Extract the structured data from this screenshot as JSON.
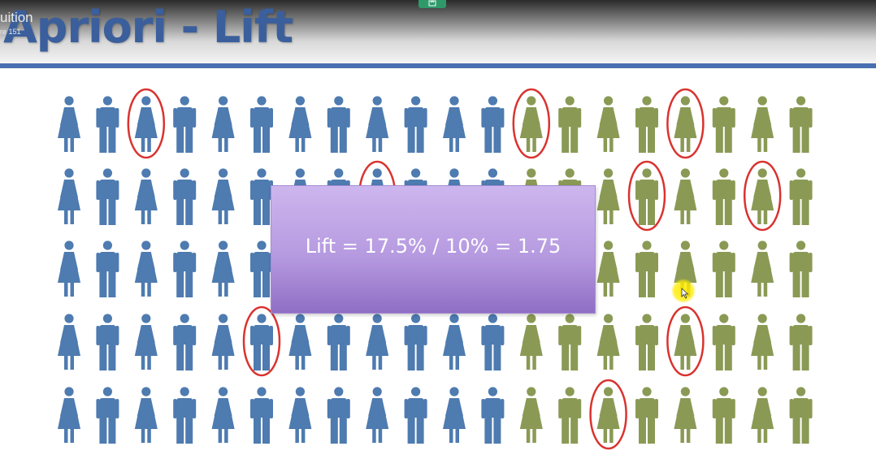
{
  "slide": {
    "title": "Apriori - Lift",
    "callout": "Lift = 17.5% / 10% = 1.75"
  },
  "overlay": {
    "title": "uition",
    "subtitle": "re 151"
  },
  "colors": {
    "blue_person": "#4e7bb0",
    "green_person": "#8a9a55",
    "circle": "#d9332f",
    "header_rule": "#4a6fb0"
  },
  "grid": {
    "rows": 5,
    "columns": 20,
    "pattern": [
      "female",
      "male"
    ],
    "blue_column_counts": [
      12,
      12,
      12,
      12,
      12
    ],
    "circled": [
      [
        0,
        2
      ],
      [
        0,
        12
      ],
      [
        0,
        16
      ],
      [
        1,
        8
      ],
      [
        1,
        15
      ],
      [
        1,
        18
      ],
      [
        3,
        5
      ],
      [
        3,
        16
      ],
      [
        4,
        14
      ]
    ]
  },
  "icons": {
    "top_button": "screen-share-icon",
    "cursor": "mouse-cursor-icon"
  }
}
